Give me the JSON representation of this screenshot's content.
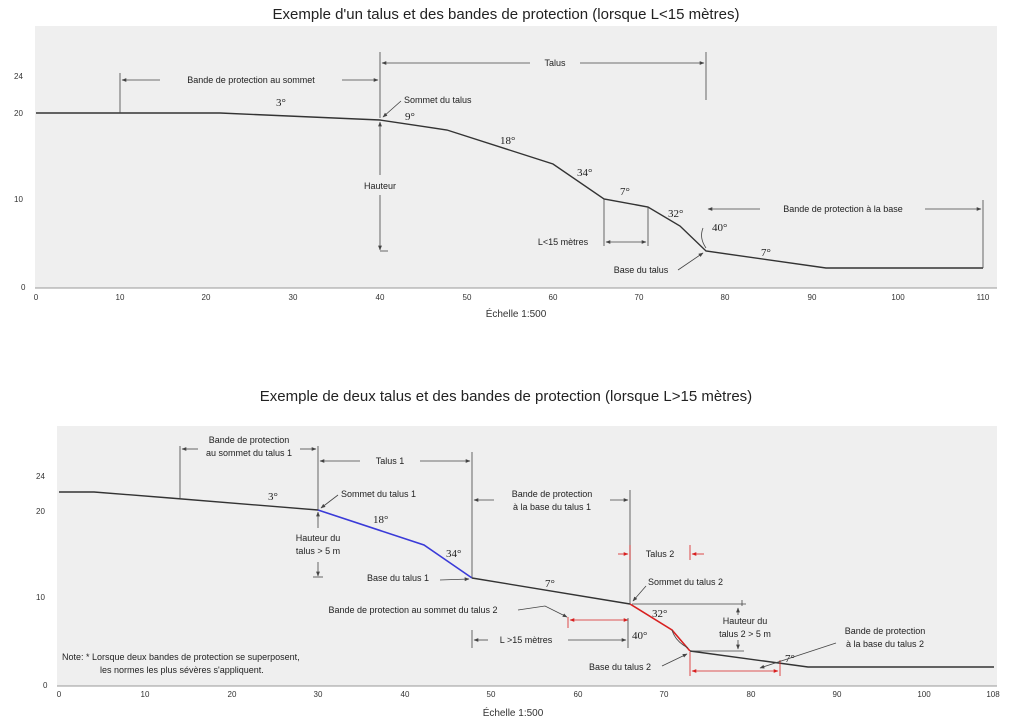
{
  "diagram1": {
    "title": "Exemple d'un talus et des bandes de protection (lorsque L<15 mètres)",
    "scale_label": "Échelle 1:500",
    "y_ticks": [
      "24",
      "20",
      "10",
      "0"
    ],
    "x_ticks": [
      "0",
      "10",
      "20",
      "30",
      "40",
      "50",
      "60",
      "70",
      "80",
      "90",
      "100",
      "110"
    ],
    "angles": {
      "a3": "3°",
      "a9": "9°",
      "a18": "18°",
      "a34": "34°",
      "a7_mid": "7°",
      "a32": "32°",
      "a40": "40°",
      "a7_base": "7°"
    },
    "labels": {
      "top_band": "Bande de protection au sommet",
      "talus": "Talus",
      "sommet": "Sommet du talus",
      "hauteur": "Hauteur",
      "l15": "L<15 mètres",
      "base": "Base du talus",
      "base_band": "Bande de protection à la base"
    }
  },
  "diagram2": {
    "title": "Exemple de deux talus et des bandes de protection (lorsque L>15 mètres)",
    "scale_label": "Échelle 1:500",
    "y_ticks": [
      "24",
      "20",
      "10",
      "0"
    ],
    "x_ticks": [
      "0",
      "10",
      "20",
      "30",
      "40",
      "50",
      "60",
      "70",
      "80",
      "90",
      "100",
      "108"
    ],
    "angles": {
      "a3": "3°",
      "a18": "18°",
      "a34": "34°",
      "a7_mid": "7°",
      "a32": "32°",
      "a40": "40°",
      "a7_base": "7°"
    },
    "labels": {
      "top_band_line1": "Bande de protection",
      "top_band_line2": "au sommet du talus 1",
      "talus1": "Talus 1",
      "sommet1": "Sommet du talus 1",
      "hauteur1_line1": "Hauteur du",
      "hauteur1_line2": "talus > 5 m",
      "base1": "Base du talus 1",
      "base_band1_line1": "Bande de protection",
      "base_band1_line2": "à la base du talus 1",
      "talus2": "Talus 2",
      "sommet2": "Sommet du talus 2",
      "top_band2": "Bande de protection au sommet du talus 2",
      "hauteur2_line1": "Hauteur du",
      "hauteur2_line2": "talus 2 > 5 m",
      "l15": "L >15 mètres",
      "base2": "Base du talus 2",
      "base_band2_line1": "Bande de protection",
      "base_band2_line2": "à la base du talus 2",
      "note_line1": "Note: * Lorsque deux bandes de protection se superposent,",
      "note_line2": "les normes les plus sévères s'appliquent."
    }
  },
  "colors": {
    "ground": "#333333",
    "talus1": "#3a3ad8",
    "talus2": "#d82020",
    "dim": "#444444",
    "frame": "#efefef"
  }
}
